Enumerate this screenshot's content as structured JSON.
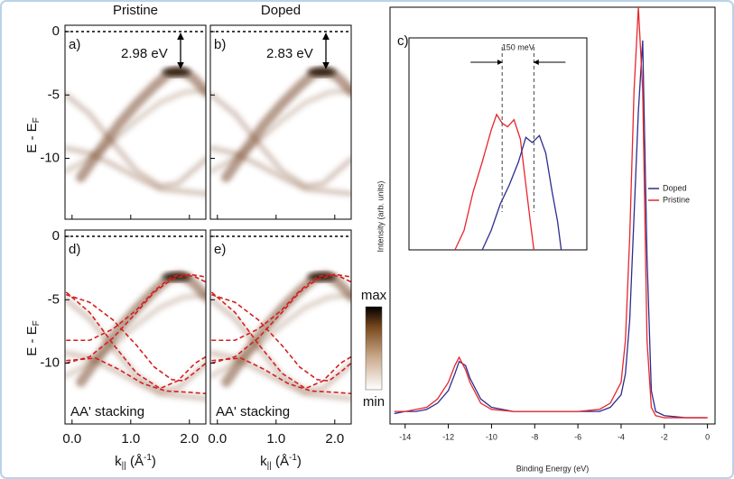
{
  "panels": {
    "titles": [
      "Pristine",
      "Doped"
    ],
    "labels": [
      "a)",
      "b)",
      "d)",
      "e)"
    ],
    "gaps": [
      "2.98 eV",
      "2.83 eV"
    ],
    "stacking": [
      "AA' stacking",
      "AA' stacking"
    ],
    "y_label": {
      "main": "E - E",
      "sub": "F"
    },
    "x_label": {
      "main": "k",
      "sub": "||",
      "unit_open": " (Å",
      "sup": "-1",
      "unit_close": ")"
    },
    "ylim": [
      -14.8,
      0.5
    ],
    "yticks": [
      0,
      -5,
      -10
    ],
    "xlim": [
      -0.12,
      2.28
    ],
    "xticks": [
      {
        "value": 0,
        "label": "0.0"
      },
      {
        "value": 1,
        "label": "1.0"
      },
      {
        "value": 2,
        "label": "2.0"
      }
    ],
    "colorbar": {
      "max": "max",
      "min": "min"
    }
  },
  "chart_data": [
    {
      "type": "line",
      "panel_label": "c)",
      "x_label": "Binding Energy (eV)",
      "y_label": "Intensity (arb. units)",
      "xlim": [
        -14.7,
        0.35
      ],
      "ylim": [
        0,
        100
      ],
      "xticks": [
        -14,
        -12,
        -10,
        -8,
        -6,
        -4,
        -2,
        0
      ],
      "legend": "right",
      "x": [
        -14.5,
        -14,
        -13.5,
        -13,
        -12.5,
        -12,
        -11.7,
        -11.5,
        -11.2,
        -11,
        -10.5,
        -10,
        -9,
        -8,
        -7,
        -6,
        -5,
        -4.5,
        -4,
        -3.8,
        -3.6,
        -3.4,
        -3.2,
        -3.0,
        -2.8,
        -2.6,
        -2.4,
        -2,
        -1,
        0
      ],
      "series": [
        {
          "name": "Doped",
          "color": "#2b2d8f",
          "values": [
            2.5,
            3,
            3,
            3.5,
            5,
            8,
            12,
            15,
            14,
            11,
            6,
            4,
            3,
            3,
            3,
            3,
            3,
            4,
            7,
            12,
            25,
            50,
            75,
            92,
            40,
            8,
            3,
            2,
            1.5,
            1.5
          ]
        },
        {
          "name": "Pristine",
          "color": "#e8262b",
          "values": [
            3,
            3,
            3.5,
            4,
            6,
            10,
            14,
            16,
            13,
            10,
            5,
            3.5,
            3,
            3,
            3,
            3,
            3.5,
            5,
            10,
            20,
            45,
            80,
            100,
            80,
            20,
            4,
            2,
            1.5,
            1.5,
            1.5
          ]
        }
      ]
    },
    {
      "type": "line",
      "annotation": "150 meV",
      "xlim": [
        -0.44,
        0.4
      ],
      "ylim": [
        0,
        100
      ],
      "markers": [
        0,
        0.15
      ],
      "series": [
        {
          "name": "Pristine",
          "color": "#e8262b",
          "x": [
            -0.223,
            -0.18,
            -0.137,
            -0.094,
            -0.052,
            -0.026,
            0,
            0.026,
            0.056,
            0.086,
            0.112,
            0.133,
            0.15
          ],
          "values": [
            0,
            11,
            33,
            50,
            68,
            77,
            72,
            70,
            74,
            63,
            37,
            16,
            0
          ]
        },
        {
          "name": "Doped",
          "color": "#2b2d8f",
          "x": [
            -0.094,
            -0.052,
            -0.009,
            0.034,
            0.077,
            0.112,
            0.142,
            0.176,
            0.206,
            0.236,
            0.262,
            0.279
          ],
          "values": [
            0,
            11,
            26,
            37,
            50,
            64,
            61,
            65,
            55,
            33,
            16,
            0
          ]
        }
      ]
    }
  ]
}
